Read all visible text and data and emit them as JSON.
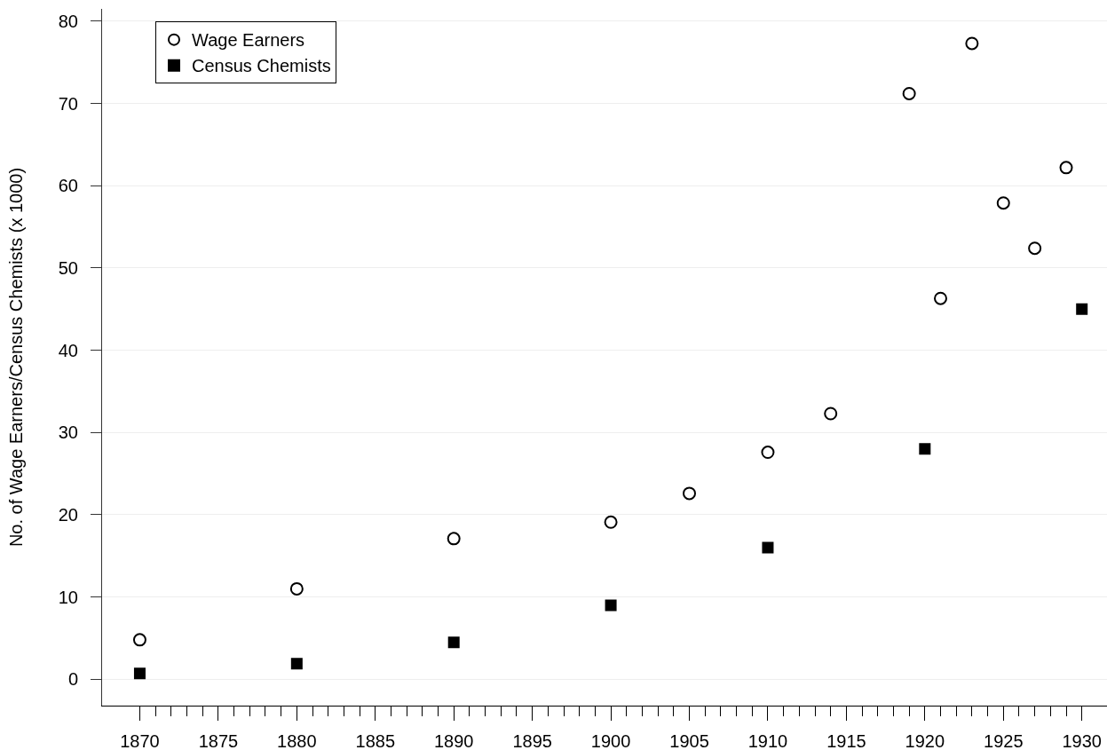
{
  "chart_data": {
    "type": "scatter",
    "ylabel": "No. of Wage Earners/Census Chemists (x 1000)",
    "series": [
      {
        "name": "Wage Earners",
        "color": "#000000",
        "marker": "circle",
        "x": [
          1870,
          1880,
          1890,
          1900,
          1905,
          1910,
          1914,
          1919,
          1921,
          1923,
          1925,
          1927,
          1929
        ],
        "values": [
          4.8,
          11.0,
          17.1,
          19.1,
          22.6,
          27.6,
          32.3,
          71.2,
          46.3,
          77.3,
          57.9,
          52.4,
          62.2
        ]
      },
      {
        "name": "Census Chemists",
        "color": "#000000",
        "marker": "square",
        "x": [
          1870,
          1880,
          1890,
          1900,
          1910,
          1920,
          1930
        ],
        "values": [
          0.7,
          1.9,
          4.5,
          9.0,
          16.0,
          28.0,
          45.0
        ]
      }
    ],
    "xlim": [
      1867.6,
      1931.6
    ],
    "xticks": [
      1870,
      {
        "value": 1871,
        "label": null
      },
      {
        "value": 1872,
        "label": null
      },
      {
        "value": 1873,
        "label": null
      },
      {
        "value": 1874,
        "label": null
      },
      1875,
      {
        "value": 1876,
        "label": null
      },
      {
        "value": 1877,
        "label": null
      },
      {
        "value": 1878,
        "label": null
      },
      {
        "value": 1879,
        "label": null
      },
      1880,
      {
        "value": 1881,
        "label": null
      },
      {
        "value": 1882,
        "label": null
      },
      {
        "value": 1883,
        "label": null
      },
      {
        "value": 1884,
        "label": null
      },
      1885,
      {
        "value": 1886,
        "label": null
      },
      {
        "value": 1887,
        "label": null
      },
      {
        "value": 1888,
        "label": null
      },
      {
        "value": 1889,
        "label": null
      },
      1890,
      {
        "value": 1891,
        "label": null
      },
      {
        "value": 1892,
        "label": null
      },
      {
        "value": 1893,
        "label": null
      },
      {
        "value": 1894,
        "label": null
      },
      1895,
      {
        "value": 1896,
        "label": null
      },
      {
        "value": 1897,
        "label": null
      },
      {
        "value": 1898,
        "label": null
      },
      {
        "value": 1899,
        "label": null
      },
      1900,
      {
        "value": 1901,
        "label": null
      },
      {
        "value": 1902,
        "label": null
      },
      {
        "value": 1903,
        "label": null
      },
      {
        "value": 1904,
        "label": null
      },
      1905,
      {
        "value": 1906,
        "label": null
      },
      {
        "value": 1907,
        "label": null
      },
      {
        "value": 1908,
        "label": null
      },
      {
        "value": 1909,
        "label": null
      },
      1910,
      {
        "value": 1911,
        "label": null
      },
      {
        "value": 1912,
        "label": null
      },
      {
        "value": 1913,
        "label": null
      },
      {
        "value": 1914,
        "label": null
      },
      1915,
      {
        "value": 1916,
        "label": null
      },
      {
        "value": 1917,
        "label": null
      },
      {
        "value": 1918,
        "label": null
      },
      {
        "value": 1919,
        "label": null
      },
      1920,
      {
        "value": 1921,
        "label": null
      },
      {
        "value": 1922,
        "label": null
      },
      {
        "value": 1923,
        "label": null
      },
      {
        "value": 1924,
        "label": null
      },
      1925,
      {
        "value": 1926,
        "label": null
      },
      {
        "value": 1927,
        "label": null
      },
      {
        "value": 1928,
        "label": null
      },
      {
        "value": 1929,
        "label": null
      },
      1930
    ],
    "ylim": [
      -3.2,
      81.5
    ],
    "yticks": [
      0,
      10,
      20,
      30,
      40,
      50,
      60,
      70,
      80
    ],
    "grid": "y",
    "legend": "top left"
  }
}
